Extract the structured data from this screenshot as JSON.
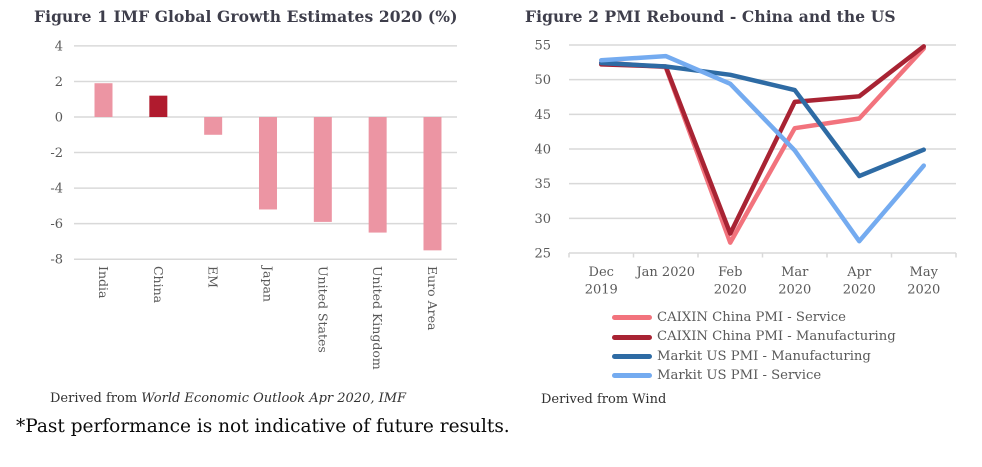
{
  "figure1": {
    "title": "Figure 1 IMF Global Growth Estimates 2020 (%)",
    "source_prefix": "Derived from ",
    "source_italic": "World Economic Outlook Apr 2020, IMF"
  },
  "figure2": {
    "title": "Figure 2 PMI Rebound - China and the US",
    "source": "Derived from Wind"
  },
  "footnote": "*Past performance is not indicative of future results.",
  "colors": {
    "bar_pink": "#EC95A3",
    "bar_dark_red": "#B01B2E",
    "caixin_service_red": "#F2737D",
    "caixin_manufacturing_red": "#A82333",
    "markit_manufacturing_blue": "#2E6BA4",
    "markit_service_blue": "#74ABF0",
    "gridline": "#D9D9D9",
    "axis_text": "#595959",
    "title_text": "#3E3E4B"
  },
  "chart_data": [
    {
      "type": "bar",
      "title": "Figure 1 IMF Global Growth Estimates 2020 (%)",
      "categories": [
        "India",
        "China",
        "EM",
        "Japan",
        "United States",
        "United Kingdom",
        "Euro Area"
      ],
      "values": [
        1.9,
        1.2,
        -1.0,
        -5.2,
        -5.9,
        -6.5,
        -7.5
      ],
      "bar_colors": [
        "#EC95A3",
        "#B01B2E",
        "#EC95A3",
        "#EC95A3",
        "#EC95A3",
        "#EC95A3",
        "#EC95A3"
      ],
      "yticks": [
        4,
        2,
        0,
        -2,
        -4,
        -6,
        -8
      ],
      "ylim": [
        -8,
        4
      ],
      "xlabel": "",
      "ylabel": "",
      "grid": true,
      "legend_position": "none"
    },
    {
      "type": "line",
      "title": "Figure 2 PMI Rebound - China and the US",
      "categories": [
        [
          "Dec",
          "2019"
        ],
        [
          "Jan 2020"
        ],
        [
          "Feb",
          "2020"
        ],
        [
          "Mar",
          "2020"
        ],
        [
          "Apr",
          "2020"
        ],
        [
          "May",
          "2020"
        ]
      ],
      "series": [
        {
          "name": "CAIXIN China PMI - Service",
          "color": "#F2737D",
          "values": [
            52.5,
            51.8,
            26.5,
            43.0,
            44.4,
            54.5
          ]
        },
        {
          "name": "CAIXIN China PMI - Manufacturing",
          "color": "#A82333",
          "values": [
            52.2,
            51.9,
            27.8,
            46.8,
            47.6,
            54.8
          ]
        },
        {
          "name": "Markit US PMI - Manufacturing",
          "color": "#2E6BA4",
          "values": [
            52.4,
            51.9,
            50.7,
            48.5,
            36.1,
            39.9
          ]
        },
        {
          "name": "Markit US PMI - Service",
          "color": "#74ABF0",
          "values": [
            52.8,
            53.4,
            49.4,
            39.8,
            26.7,
            37.6
          ]
        }
      ],
      "yticks": [
        55,
        50,
        45,
        40,
        35,
        30,
        25
      ],
      "ylim": [
        25,
        55
      ],
      "xlabel": "",
      "ylabel": "",
      "grid": true,
      "legend_position": "bottom"
    }
  ]
}
